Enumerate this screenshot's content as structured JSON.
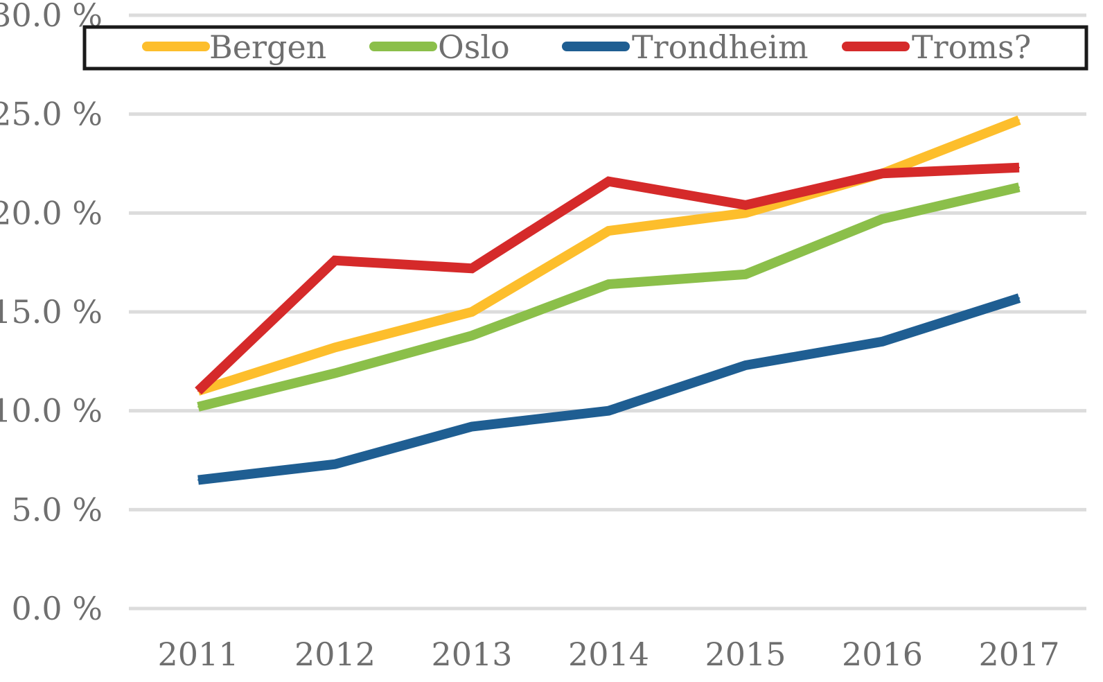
{
  "chart_data": {
    "type": "line",
    "title": "",
    "xlabel": "",
    "ylabel": "",
    "categories": [
      "2011",
      "2012",
      "2013",
      "2014",
      "2015",
      "2016",
      "2017"
    ],
    "ylim": [
      0,
      30
    ],
    "y_ticks": [
      0,
      5,
      10,
      15,
      20,
      25,
      30
    ],
    "y_tick_labels": [
      "0.0 %",
      "5.0 %",
      "10.0 %",
      "15.0 %",
      "20.0 %",
      "25.0 %",
      "30.0 %"
    ],
    "grid": true,
    "legend_position": "top",
    "series": [
      {
        "name": "Bergen",
        "color": "#FDBE2C",
        "values": [
          11.0,
          13.2,
          15.0,
          19.1,
          20.0,
          22.0,
          24.7
        ]
      },
      {
        "name": "Oslo",
        "color": "#8BBF4A",
        "values": [
          10.2,
          11.9,
          13.8,
          16.4,
          16.9,
          19.7,
          21.3
        ]
      },
      {
        "name": "Trondheim",
        "color": "#1F5E92",
        "values": [
          6.5,
          7.3,
          9.2,
          10.0,
          12.3,
          13.5,
          15.7
        ]
      },
      {
        "name": "Troms?",
        "color": "#D52A2A",
        "values": [
          11.0,
          17.6,
          17.2,
          21.6,
          20.4,
          22.0,
          22.3
        ]
      }
    ]
  }
}
